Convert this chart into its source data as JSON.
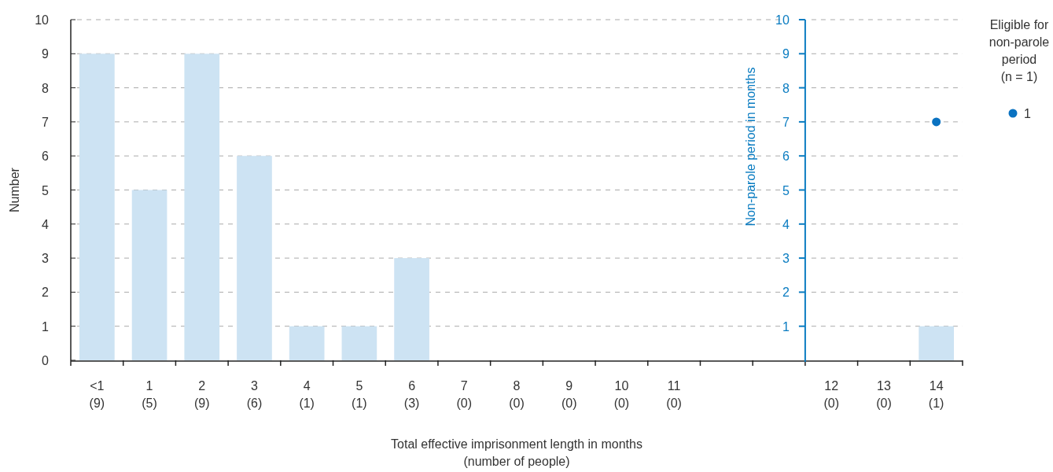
{
  "chart_data": {
    "type": "bar",
    "xlabel": "Total effective imprisonment length in months\n(number of people)",
    "ylabel": "Number",
    "y2label": "Non-parole period in months",
    "legend_title": "Eligible for\nnon-parole\nperiod\n(n = 1)",
    "categories": [
      "<1\n(9)",
      "1\n(5)",
      "2\n(9)",
      "3\n(6)",
      "4\n(1)",
      "5\n(1)",
      "6\n(3)",
      "7\n(0)",
      "8\n(0)",
      "9\n(0)",
      "10\n(0)",
      "11\n(0)",
      null,
      null,
      "12\n(0)",
      "13\n(0)",
      "14\n(1)"
    ],
    "series": [
      {
        "color": "#cde3f3",
        "values": [
          9,
          5,
          9,
          6,
          1,
          1,
          3,
          0,
          0,
          0,
          0,
          0,
          null,
          null,
          0,
          0,
          1
        ]
      },
      {
        "type": "scatter",
        "name": "1",
        "axis": "y2",
        "color": "#0a72c1",
        "x": [
          "14\n(1)"
        ],
        "values": [
          7
        ]
      }
    ],
    "ylim": [
      0,
      10
    ],
    "yticks": [
      0,
      1,
      2,
      3,
      4,
      5,
      6,
      7,
      8,
      9,
      10
    ],
    "y2lim": [
      0,
      10
    ],
    "y2ticks": [
      1,
      2,
      3,
      4,
      5,
      6,
      7,
      8,
      9,
      10
    ],
    "grid": "y",
    "legend": "right",
    "marker": "circle"
  }
}
